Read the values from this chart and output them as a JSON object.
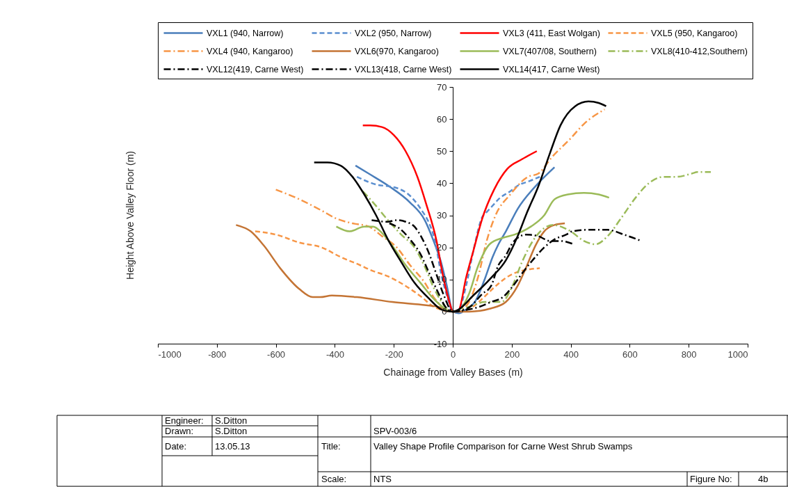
{
  "chart_data": {
    "type": "line",
    "xlabel": "Chainage  from Valley Bases (m)",
    "ylabel": "Height Above Valley Floor (m)",
    "xlim": [
      -1000,
      1000
    ],
    "xticks": [
      -1000,
      -800,
      -600,
      -400,
      -200,
      0,
      200,
      400,
      600,
      800,
      1000
    ],
    "ylim": [
      -10,
      70
    ],
    "yticks": [
      -10,
      0,
      10,
      20,
      30,
      40,
      50,
      60,
      70
    ],
    "grid": false,
    "legend": "top",
    "annotations": [
      "Engineer:",
      "S.Ditton",
      "Drawn:",
      "S.Ditton",
      "Date:",
      "13.05.13",
      "SPV-003/6",
      "Title:",
      "Valley Shape Profile Comparison for Carne West Shrub Swamps",
      "Scale:",
      "NTS",
      "Figure No:",
      "4b"
    ],
    "series": [
      {
        "name": "VXL1 (940, Narrow)",
        "color": "#4a7ebb",
        "line_style": "solid",
        "x": [
          -330,
          -285,
          -215,
          -145,
          -95,
          -65,
          -40,
          -20,
          0,
          20,
          50,
          75,
          110,
          135,
          155,
          180,
          220,
          290,
          345
        ],
        "values": [
          45.5,
          43,
          39,
          34,
          28.5,
          22,
          15.5,
          8,
          0,
          -0.5,
          1,
          3,
          10.5,
          17,
          21,
          25,
          32,
          40,
          45
        ]
      },
      {
        "name": "VXL2 (950, Narrow)",
        "color": "#5b8fd0",
        "line_style": "dashed",
        "x": [
          -325,
          -255,
          -215,
          -190,
          -150,
          -105,
          -80,
          -60,
          -40,
          -20,
          0,
          20,
          45,
          70,
          100,
          115,
          140,
          155,
          195,
          225,
          255,
          295
        ],
        "values": [
          42,
          39.5,
          39,
          38.5,
          36.5,
          31.5,
          27.5,
          22,
          12,
          5,
          0,
          0.5,
          8,
          19,
          29.5,
          31,
          33.5,
          35,
          37.5,
          39.5,
          40.5,
          42
        ]
      },
      {
        "name": "VXL3 (411, East Wolgan)",
        "color": "#ff0000",
        "line_style": "solid",
        "x": [
          -305,
          -280,
          -240,
          -200,
          -160,
          -120,
          -90,
          -55,
          -35,
          -10,
          0,
          20,
          45,
          70,
          100,
          140,
          185,
          235,
          285
        ],
        "values": [
          58,
          58,
          57.5,
          55,
          50,
          42,
          33.5,
          22,
          12,
          2.5,
          0,
          0.5,
          10.5,
          19,
          29,
          38,
          44.5,
          47.5,
          50
        ]
      },
      {
        "name": "VXL5 (950, Kangaroo)",
        "color": "#f79646",
        "line_style": "dashed",
        "x": [
          -670,
          -600,
          -520,
          -445,
          -380,
          -315,
          -280,
          -220,
          -160,
          -105,
          -65,
          0,
          20,
          60,
          100,
          140,
          180,
          225,
          295
        ],
        "values": [
          25,
          24,
          21.5,
          20,
          17,
          14.5,
          13,
          11,
          8,
          4.5,
          1.5,
          0,
          0,
          1,
          4,
          7.5,
          10.5,
          12.5,
          13.5
        ]
      },
      {
        "name": "VXL4 (940, Kangaroo)",
        "color": "#f79646",
        "line_style": "dashdot",
        "x": [
          -600,
          -520,
          -445,
          -395,
          -340,
          -285,
          -240,
          -190,
          -145,
          -95,
          -65,
          0,
          25,
          55,
          85,
          115,
          145,
          195,
          255,
          290,
          335,
          400,
          445,
          515
        ],
        "values": [
          38,
          35,
          31.5,
          29,
          27.5,
          26.5,
          23.5,
          20,
          14.5,
          9,
          4.5,
          0,
          0.5,
          3,
          10.5,
          22,
          30,
          36.5,
          42,
          43,
          48,
          54,
          58.5,
          63
        ]
      },
      {
        "name": "VXL6(970, Kangaroo)",
        "color": "#c47434",
        "line_style": "solid",
        "x": [
          -735,
          -685,
          -640,
          -585,
          -520,
          -475,
          -450,
          -410,
          -325,
          -205,
          -90,
          -50,
          0,
          55,
          130,
          180,
          220,
          250,
          280,
          310,
          345,
          380
        ],
        "values": [
          27,
          25,
          20.5,
          13.5,
          7,
          4.5,
          4.5,
          5,
          4.5,
          3,
          2,
          1.5,
          0,
          0,
          1,
          3,
          8,
          14,
          20.5,
          25,
          27,
          27.5
        ]
      },
      {
        "name": "VXL7(407/08, Southern)",
        "color": "#9bbb59",
        "line_style": "solid",
        "x": [
          -395,
          -350,
          -300,
          -270,
          -240,
          -205,
          -160,
          -110,
          -65,
          0,
          20,
          55,
          85,
          125,
          170,
          210,
          265,
          310,
          345,
          390,
          445,
          495,
          530
        ],
        "values": [
          26.5,
          25,
          26.5,
          26.5,
          24.5,
          20.5,
          14.5,
          9,
          4,
          0,
          0.5,
          5.5,
          14,
          21,
          23,
          24,
          26.5,
          30,
          35,
          36.5,
          37,
          36.5,
          35.5
        ]
      },
      {
        "name": "VXL8(410-412,Southern)",
        "color": "#9bbb59",
        "line_style": "dashdot",
        "x": [
          -305,
          -270,
          -220,
          -175,
          -130,
          -95,
          -65,
          0,
          55,
          110,
          165,
          200,
          235,
          275,
          310,
          340,
          400,
          445,
          485,
          525,
          570,
          620,
          665,
          715,
          760,
          810,
          830,
          875
        ],
        "values": [
          37.5,
          34,
          28.5,
          24,
          20,
          14,
          7.5,
          0,
          1.5,
          3,
          3,
          7.5,
          15.5,
          22.5,
          26,
          27,
          25,
          22,
          21,
          23.5,
          29,
          35.5,
          40,
          42,
          42,
          43,
          43.5,
          43.5
        ]
      },
      {
        "name": "VXL12(419, Carne West)",
        "color": "#000000",
        "line_style": "dashdot",
        "x": [
          -275,
          -220,
          -190,
          -160,
          -130,
          -105,
          -80,
          -55,
          -30,
          0,
          50,
          100,
          130,
          155,
          180,
          200,
          220,
          250,
          290,
          330,
          365,
          410
        ],
        "values": [
          28.5,
          28,
          28.5,
          28,
          26.5,
          23,
          18,
          11.5,
          5,
          0,
          1,
          5.5,
          8,
          14.5,
          17.5,
          21,
          23,
          24,
          23.5,
          22,
          22,
          21
        ]
      },
      {
        "name": "VXL13(418, Carne West)",
        "color": "#000000",
        "line_style": "dashdot",
        "x": [
          -215,
          -175,
          -145,
          -110,
          -80,
          -50,
          -25,
          0,
          45,
          90,
          130,
          170,
          200,
          240,
          280,
          310,
          345,
          385,
          405,
          460,
          525,
          580,
          640
        ],
        "values": [
          27.5,
          25.5,
          22.5,
          18,
          12,
          6,
          1.5,
          0,
          0.5,
          1.5,
          3,
          4.5,
          7.5,
          12.5,
          17,
          20,
          22.5,
          24,
          25,
          25.5,
          25.5,
          24,
          22
        ]
      },
      {
        "name": "VXL14(417, Carne West)",
        "color": "#000000",
        "line_style": "solid",
        "x": [
          -470,
          -425,
          -380,
          -340,
          -300,
          -260,
          -220,
          -175,
          -130,
          -80,
          -35,
          0,
          75,
          130,
          180,
          220,
          250,
          290,
          330,
          365,
          415,
          460,
          495,
          520
        ],
        "values": [
          46.5,
          46.5,
          45.5,
          42,
          36.5,
          30,
          22.5,
          15.5,
          9,
          4,
          0.5,
          0,
          5.5,
          10.5,
          16,
          23.5,
          30.5,
          39,
          49.5,
          58,
          64,
          65.5,
          65,
          64
        ]
      }
    ]
  }
}
